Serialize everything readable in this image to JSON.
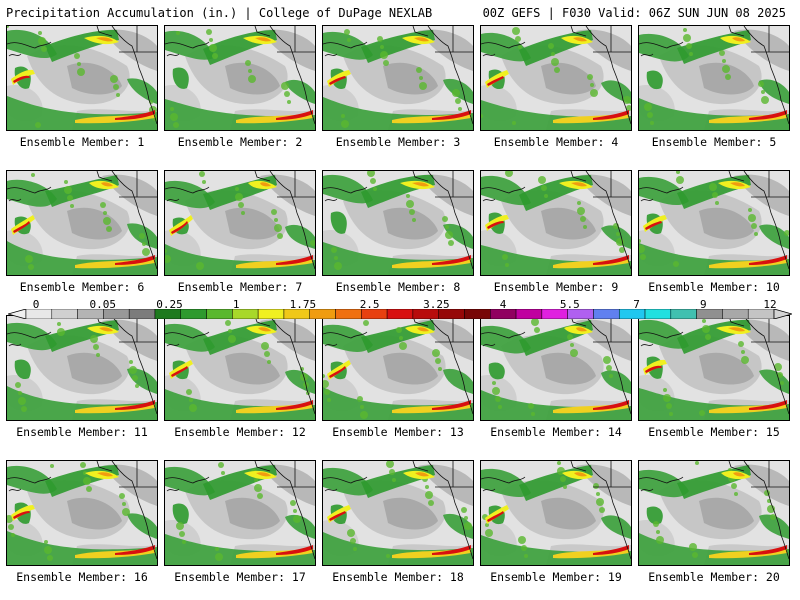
{
  "header": {
    "left_title": "Precipitation Accumulation (in.) | College of DuPage NEXLAB",
    "right_title": "00Z GEFS | F030 Valid: 06Z SUN JUN 08 2025"
  },
  "panels": [
    {
      "label": "Ensemble Member: 1"
    },
    {
      "label": "Ensemble Member: 2"
    },
    {
      "label": "Ensemble Member: 3"
    },
    {
      "label": "Ensemble Member: 4"
    },
    {
      "label": "Ensemble Member: 5"
    },
    {
      "label": "Ensemble Member: 6"
    },
    {
      "label": "Ensemble Member: 7"
    },
    {
      "label": "Ensemble Member: 8"
    },
    {
      "label": "Ensemble Member: 9"
    },
    {
      "label": "Ensemble Member: 10"
    },
    {
      "label": "Ensemble Member: 11"
    },
    {
      "label": "Ensemble Member: 12"
    },
    {
      "label": "Ensemble Member: 13"
    },
    {
      "label": "Ensemble Member: 14"
    },
    {
      "label": "Ensemble Member: 15"
    },
    {
      "label": "Ensemble Member: 16"
    },
    {
      "label": "Ensemble Member: 17"
    },
    {
      "label": "Ensemble Member: 18"
    },
    {
      "label": "Ensemble Member: 19"
    },
    {
      "label": "Ensemble Member: 20"
    }
  ],
  "colorbar": {
    "tick_labels": [
      "0",
      "0.05",
      "0.25",
      "1",
      "1.75",
      "2.5",
      "3.25",
      "4",
      "5.5",
      "7",
      "9",
      "12"
    ],
    "colors": [
      "#e8e8e8",
      "#d0d0d0",
      "#b4b4b4",
      "#989898",
      "#7c7c7c",
      "#1e7a1e",
      "#2e9a2e",
      "#5ab82e",
      "#a8d82a",
      "#f0f020",
      "#f0c818",
      "#f09c10",
      "#f07010",
      "#e84010",
      "#d81010",
      "#b80c0c",
      "#960808",
      "#780606",
      "#900060",
      "#c000a0",
      "#e020e0",
      "#b060f0",
      "#6080f0",
      "#20c8f0",
      "#20e0e0",
      "#40c0b0",
      "#909090",
      "#a8a8a8",
      "#c4c4c4"
    ]
  }
}
